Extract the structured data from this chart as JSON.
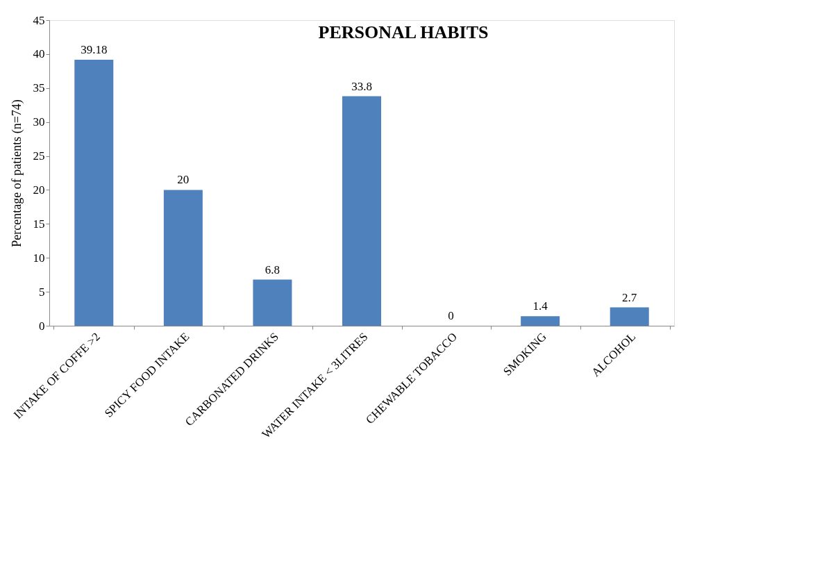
{
  "chart_data": {
    "type": "bar",
    "title": "PERSONAL HABITS",
    "ylabel": "Percentage of patients (n=74)",
    "categories": [
      "INTAKE OF COFFE >2",
      "SPICY FOOD INTAKE",
      "CARBONATED DRINKS",
      "WATER INTAKE < 3LITRES",
      "CHEWABLE TOBACCO",
      "SMOKING",
      "ALCOHOL"
    ],
    "values": [
      39.18,
      20,
      6.8,
      33.8,
      0,
      1.4,
      2.7
    ],
    "color": "#4f81bd",
    "ylim": [
      0,
      45
    ],
    "yticks": [
      0,
      5,
      10,
      15,
      20,
      25,
      30,
      35,
      40,
      45
    ],
    "grid": false,
    "data_labels": true
  }
}
